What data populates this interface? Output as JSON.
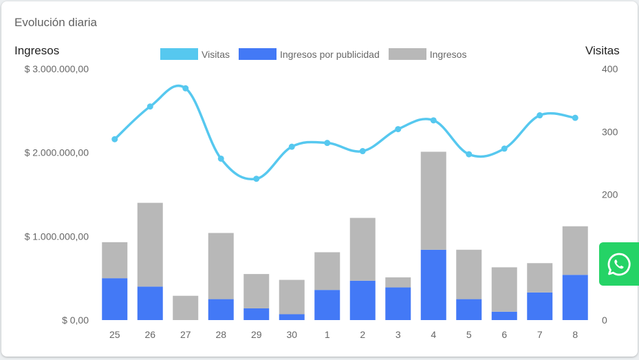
{
  "card": {
    "title": "Evolución diaria"
  },
  "colors": {
    "visitas": "#56c8ef",
    "publicidad": "#4379f6",
    "ingresos": "#b8b8b8",
    "whatsapp": "#25d366"
  },
  "chart_data": {
    "type": "bar",
    "title": "Evolución diaria",
    "y_left_label": "Ingresos",
    "y_right_label": "Visitas",
    "y_left_ticks": [
      "$ 0,00",
      "$ 1.000.000,00",
      "$ 2.000.000,00",
      "$ 3.000.000,00"
    ],
    "y_left_range": [
      0,
      3000000
    ],
    "y_right_ticks": [
      "0",
      "100",
      "200",
      "300",
      "400"
    ],
    "y_right_range": [
      0,
      400
    ],
    "categories": [
      "25",
      "26",
      "27",
      "28",
      "29",
      "30",
      "1",
      "2",
      "3",
      "4",
      "5",
      "6",
      "7",
      "8"
    ],
    "series": [
      {
        "name": "Visitas",
        "type": "line",
        "axis": "right",
        "values": [
          288,
          340,
          369,
          257,
          225,
          276,
          282,
          269,
          304,
          318,
          264,
          273,
          326,
          322
        ]
      },
      {
        "name": "Ingresos por publicidad",
        "type": "bar",
        "axis": "left",
        "stack": true,
        "values": [
          500000,
          400000,
          0,
          250000,
          140000,
          70000,
          360000,
          470000,
          390000,
          840000,
          250000,
          100000,
          330000,
          540000
        ]
      },
      {
        "name": "Ingresos",
        "type": "bar",
        "axis": "left",
        "stack": true,
        "values": [
          430000,
          1000000,
          290000,
          790000,
          410000,
          410000,
          450000,
          750000,
          120000,
          1170000,
          590000,
          530000,
          350000,
          580000
        ]
      }
    ],
    "legend_position": "top-center",
    "grid": false
  },
  "whatsapp": {
    "icon": "whatsapp-icon"
  }
}
